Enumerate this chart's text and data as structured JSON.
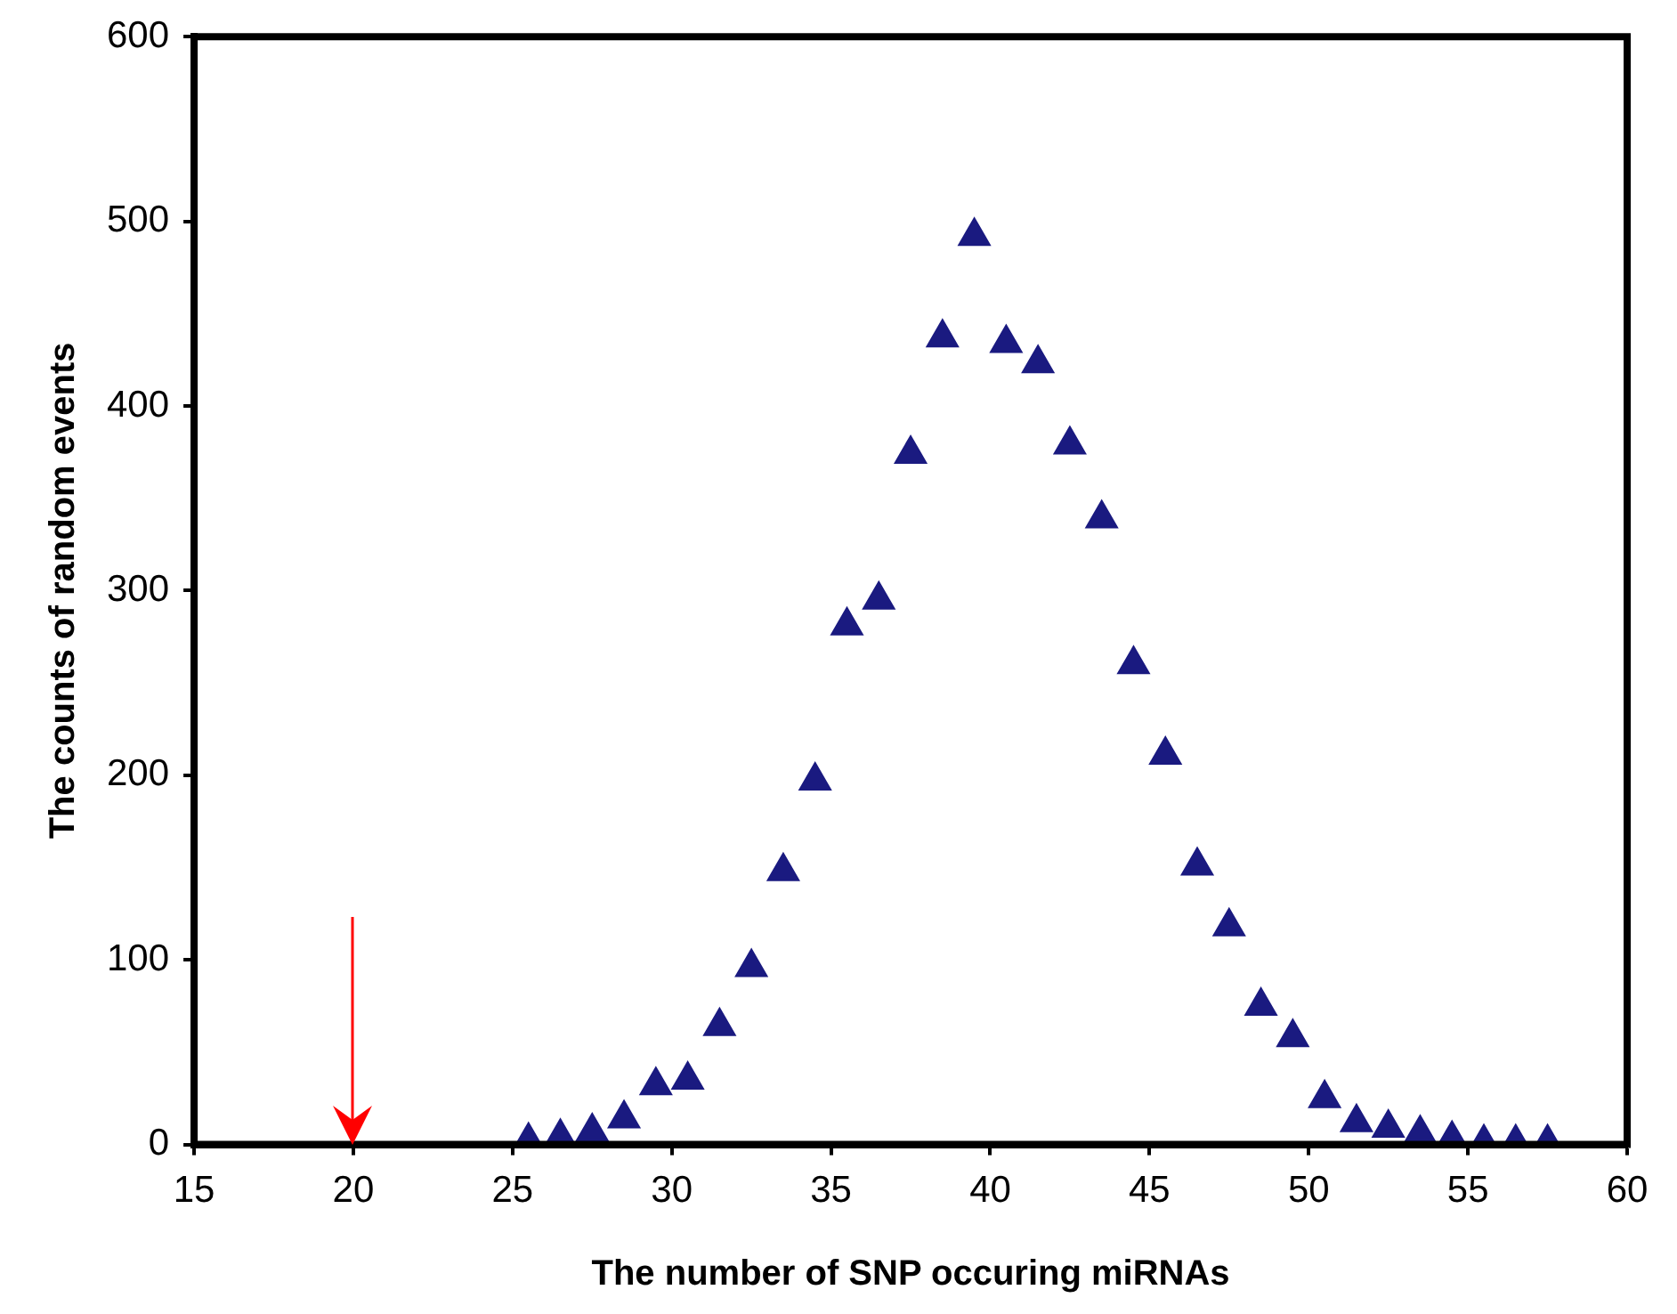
{
  "chart_data": {
    "type": "scatter",
    "xlabel": "The number of SNP occuring miRNAs",
    "ylabel": "The counts of random events",
    "x": [
      25.5,
      26.5,
      27.5,
      28.5,
      29.5,
      30.5,
      31.5,
      32.5,
      33.5,
      34.5,
      35.5,
      36.5,
      37.5,
      38.5,
      39.5,
      40.5,
      41.5,
      42.5,
      43.5,
      44.5,
      45.5,
      46.5,
      47.5,
      48.5,
      49.5,
      50.5,
      51.5,
      52.5,
      53.5,
      54.5,
      55.5,
      56.5,
      57.5
    ],
    "series": [
      {
        "color": "#1a1a80",
        "values": [
          2,
          4,
          7,
          14,
          32,
          35,
          64,
          96,
          148,
          197,
          281,
          295,
          374,
          437,
          492,
          434,
          423,
          379,
          339,
          260,
          211,
          151,
          118,
          75,
          58,
          25,
          12,
          9,
          6,
          3,
          1,
          1,
          1
        ]
      }
    ],
    "marker": "triangle",
    "xlim": [
      15,
      60
    ],
    "xticks": [
      15,
      20,
      25,
      30,
      35,
      40,
      45,
      50,
      55,
      60
    ],
    "ylim": [
      0,
      600
    ],
    "yticks": [
      0,
      100,
      200,
      300,
      400,
      500,
      600
    ],
    "ref_lines": [
      {
        "axis": "x",
        "value": 20,
        "color": "#ff0000"
      }
    ],
    "grid": false,
    "legend": false
  }
}
